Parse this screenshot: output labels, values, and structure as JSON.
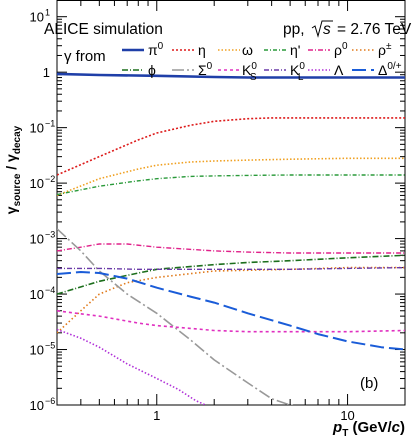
{
  "chart_data": {
    "type": "line",
    "title": "",
    "header": {
      "left": "ALICE simulation",
      "right_prefix": "pp,",
      "right_sqrt": "s",
      "right_suffix": "= 2.76 TeV"
    },
    "legend_title": "γ from",
    "panel_label": "(b)",
    "ylabel": {
      "main": "γ",
      "sub1": "source",
      "sep": " / γ",
      "sub2": "decay"
    },
    "xlabel": {
      "p": "p",
      "sub": "T",
      "unit": " (GeV/",
      "c": "c",
      "close": ")"
    },
    "xscale": "log",
    "yscale": "log",
    "xlim": [
      0.3,
      20
    ],
    "ylim": [
      1e-06,
      20
    ],
    "xticks": [
      {
        "v": 1,
        "label": "1"
      },
      {
        "v": 10,
        "label": "10"
      }
    ],
    "yticks": [
      {
        "v": 10,
        "label": "10",
        "exp": "1"
      },
      {
        "v": 1,
        "label": "1",
        "exp": ""
      },
      {
        "v": 0.1,
        "label": "10",
        "exp": "−1"
      },
      {
        "v": 0.01,
        "label": "10",
        "exp": "−2"
      },
      {
        "v": 0.001,
        "label": "10",
        "exp": "−3"
      },
      {
        "v": 0.0001,
        "label": "10",
        "exp": "−4"
      },
      {
        "v": 1e-05,
        "label": "10",
        "exp": "−5"
      },
      {
        "v": 1e-06,
        "label": "10",
        "exp": "−6"
      }
    ],
    "series": [
      {
        "name": "π",
        "sup": "0",
        "sub": "",
        "color": "#1f3fa8",
        "dash": "",
        "width": 2.6,
        "x": [
          0.3,
          0.5,
          1,
          2,
          3,
          5,
          10,
          20
        ],
        "y": [
          0.93,
          0.89,
          0.86,
          0.82,
          0.8,
          0.8,
          0.8,
          0.8
        ]
      },
      {
        "name": "η",
        "sup": "",
        "sub": "",
        "color": "#dd1a1a",
        "dash": "2,2",
        "width": 1.6,
        "x": [
          0.3,
          0.5,
          0.8,
          1,
          1.5,
          2,
          3,
          4,
          6,
          10,
          20
        ],
        "y": [
          0.014,
          0.03,
          0.06,
          0.08,
          0.11,
          0.13,
          0.145,
          0.15,
          0.15,
          0.15,
          0.15
        ]
      },
      {
        "name": "ω",
        "sup": "",
        "sub": "",
        "color": "#f0a020",
        "dash": "1.5,2",
        "width": 1.6,
        "x": [
          0.3,
          0.5,
          0.8,
          1,
          1.5,
          2,
          3,
          5,
          10,
          20
        ],
        "y": [
          0.006,
          0.012,
          0.018,
          0.021,
          0.024,
          0.025,
          0.026,
          0.027,
          0.028,
          0.028
        ]
      },
      {
        "name": "η'",
        "sup": "",
        "sub": "",
        "color": "#2a9a3a",
        "dash": "4,2,1,2",
        "width": 1.4,
        "x": [
          0.3,
          0.5,
          0.8,
          1,
          1.5,
          2,
          3,
          5,
          10,
          20
        ],
        "y": [
          0.0062,
          0.0088,
          0.011,
          0.012,
          0.0132,
          0.0135,
          0.0138,
          0.014,
          0.014,
          0.014
        ]
      },
      {
        "name": "ρ",
        "sup": "0",
        "sub": "",
        "color": "#e0208a",
        "dash": "5,2,1,2",
        "width": 1.4,
        "x": [
          0.3,
          0.4,
          0.5,
          0.7,
          1,
          2,
          3,
          5,
          10,
          20
        ],
        "y": [
          0.0006,
          0.0007,
          0.0008,
          0.0008,
          0.0007,
          0.0006,
          0.00057,
          0.00055,
          0.00055,
          0.00055
        ]
      },
      {
        "name": "ρ",
        "sup": "±",
        "sub": "",
        "color": "#e07818",
        "dash": "1.5,2.5",
        "width": 1.6,
        "x": [
          0.3,
          0.4,
          0.5,
          0.7,
          1,
          2,
          5,
          10,
          20
        ],
        "y": [
          2e-05,
          5e-05,
          0.0001,
          0.00016,
          0.0002,
          0.00026,
          0.00028,
          0.0003,
          0.0003
        ]
      },
      {
        "name": "ϕ",
        "sup": "",
        "sub": "",
        "color": "#1c6e1c",
        "dash": "6,2,1,2",
        "width": 1.6,
        "x": [
          0.3,
          0.5,
          0.8,
          1,
          2,
          3,
          5,
          10,
          20
        ],
        "y": [
          0.0001,
          0.00017,
          0.00024,
          0.00028,
          0.00034,
          0.00037,
          0.0004,
          0.00045,
          0.0005
        ]
      },
      {
        "name": "Σ",
        "sup": "0",
        "sub": "",
        "color": "#999999",
        "dash": "12,3,2,3",
        "width": 1.6,
        "x": [
          0.3,
          0.4,
          0.5,
          0.7,
          1,
          1.5,
          2,
          3,
          4,
          5,
          6
        ],
        "y": [
          0.0015,
          0.0006,
          0.00026,
          0.0001,
          4.5e-05,
          1.5e-05,
          6.5e-06,
          2.5e-06,
          1.3e-06,
          1e-06,
          9e-07
        ]
      },
      {
        "name": "K",
        "sup": "0",
        "sub": "S",
        "color": "#e030c0",
        "dash": "3,3",
        "width": 1.6,
        "x": [
          0.3,
          0.5,
          0.8,
          1,
          1.5,
          2,
          3,
          5,
          10,
          20
        ],
        "y": [
          5e-05,
          4e-05,
          3e-05,
          2.7e-05,
          2.4e-05,
          2.2e-05,
          2.1e-05,
          2.1e-05,
          2.1e-05,
          2.2e-05
        ]
      },
      {
        "name": "K",
        "sup": "0",
        "sub": "L",
        "color": "#6a3aa8",
        "dash": "5,2,1,2",
        "width": 1.4,
        "x": [
          0.3,
          0.5,
          0.8,
          1,
          2,
          5,
          10,
          20
        ],
        "y": [
          0.00029,
          0.00029,
          0.00028,
          0.00028,
          0.00028,
          0.00028,
          0.00029,
          0.0003
        ]
      },
      {
        "name": "Λ",
        "sup": "",
        "sub": "",
        "color": "#b030d8",
        "dash": "1.5,2",
        "width": 1.6,
        "x": [
          0.3,
          0.4,
          0.5,
          0.7,
          1,
          1.3,
          1.6,
          1.8
        ],
        "y": [
          2.3e-05,
          1.6e-05,
          1.1e-05,
          5.5e-06,
          3e-06,
          1.9e-06,
          1.2e-06,
          1e-06
        ]
      },
      {
        "name": "Δ",
        "sup": "0/+",
        "sub": "",
        "color": "#1a5cd8",
        "dash": "14,5",
        "width": 2,
        "x": [
          0.3,
          0.4,
          0.5,
          0.7,
          1,
          1.5,
          2,
          3,
          5,
          7,
          10,
          15,
          20
        ],
        "y": [
          0.00023,
          0.00025,
          0.00024,
          0.00019,
          0.00013,
          9e-05,
          7e-05,
          4.5e-05,
          2.7e-05,
          1.9e-05,
          1.4e-05,
          1.1e-05,
          1e-05
        ]
      }
    ]
  }
}
